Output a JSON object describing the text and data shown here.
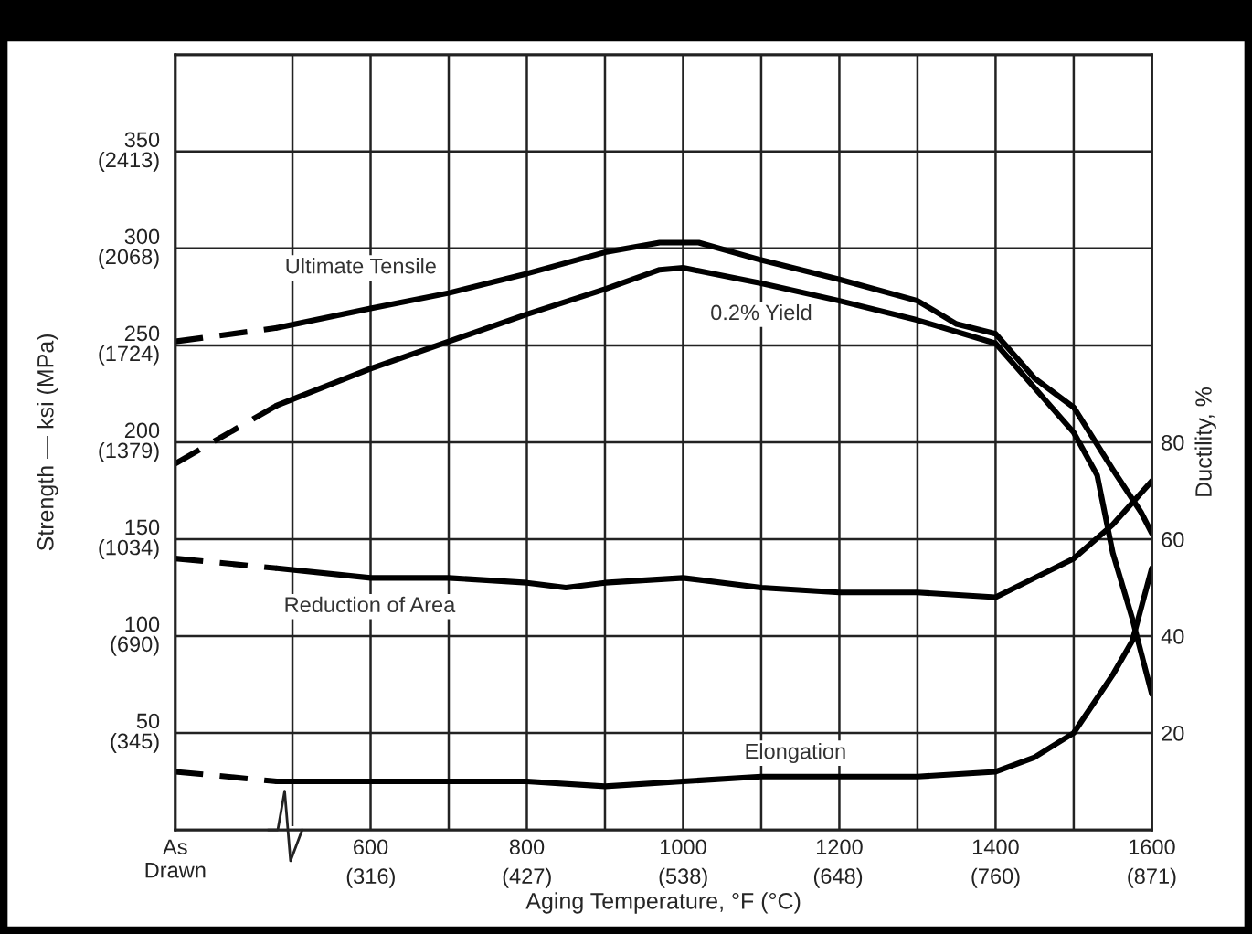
{
  "chart_data": {
    "type": "line",
    "xlabel": "Aging Temperature, °F (°C)",
    "ylabel": "Strength — ksi (MPa)",
    "y2label": "Ductility, %",
    "xlim": [
      350,
      1600
    ],
    "xticks": [
      {
        "value": 350,
        "label": "As\nDrawn"
      },
      {
        "value": 500,
        "label": null
      },
      600,
      {
        "value": 700,
        "label": null
      },
      800,
      {
        "value": 900,
        "label": null
      },
      1000,
      {
        "value": 1100,
        "label": null
      },
      1200,
      {
        "value": 1300,
        "label": null
      },
      1400,
      {
        "value": 1500,
        "label": null
      },
      1600
    ],
    "x2lim": [
      177,
      871
    ],
    "x2ticks": [
      {
        "value": 316,
        "label": "(316)"
      },
      {
        "value": 427,
        "label": "(427)"
      },
      {
        "value": 538,
        "label": "(538)"
      },
      {
        "value": 648,
        "label": "(648)"
      },
      {
        "value": 760,
        "label": "(760)"
      },
      {
        "value": 871,
        "label": "(871)"
      }
    ],
    "ylim": [
      0,
      400
    ],
    "yticks": [
      50,
      100,
      150,
      200,
      250,
      300,
      350
    ],
    "y3lim": [
      0,
      2758
    ],
    "y3ticks": [
      {
        "value": 345,
        "label": "(345)"
      },
      {
        "value": 690,
        "label": "(690)"
      },
      {
        "value": 1034,
        "label": "(1034)"
      },
      {
        "value": 1379,
        "label": "(1379)"
      },
      {
        "value": 1724,
        "label": "(1724)"
      },
      {
        "value": 2068,
        "label": "(2068)"
      },
      {
        "value": 2413,
        "label": "(2413)"
      }
    ],
    "y2lim": [
      0,
      160
    ],
    "y2ticks": [
      20,
      40,
      60,
      80
    ],
    "grid": true,
    "legend": false,
    "series": [
      {
        "color": "#000000",
        "line_style": "dashed",
        "x": [
          350,
          480
        ],
        "values": [
          252,
          259
        ]
      },
      {
        "name": "Ultimate Tensile",
        "color": "#000000",
        "line_style": "solid",
        "x": [
          480,
          600,
          700,
          800,
          900,
          970,
          1000,
          1020,
          1100,
          1200,
          1300,
          1350,
          1400,
          1450,
          1500,
          1550,
          1586,
          1600
        ],
        "values": [
          259,
          269,
          277,
          287,
          298,
          303,
          303,
          303,
          294,
          284,
          273,
          261,
          256,
          233,
          218,
          186,
          164,
          153
        ]
      },
      {
        "color": "#000000",
        "line_style": "dashed",
        "x": [
          350,
          480
        ],
        "values": [
          189,
          219
        ]
      },
      {
        "name": "0.2% Yield",
        "color": "#000000",
        "line_style": "solid",
        "x": [
          480,
          600,
          700,
          800,
          900,
          970,
          1000,
          1100,
          1200,
          1300,
          1400,
          1450,
          1500,
          1530,
          1550,
          1575,
          1600
        ],
        "values": [
          219,
          238,
          252,
          266,
          279,
          289,
          290,
          282,
          273,
          263,
          251,
          228,
          205,
          183,
          143,
          109,
          70
        ]
      },
      {
        "color": "#000000",
        "line_style": "dashed",
        "axis": "y2",
        "x": [
          350,
          480
        ],
        "values": [
          56,
          54
        ]
      },
      {
        "name": "Reduction of Area",
        "color": "#000000",
        "line_style": "solid",
        "axis": "y2",
        "x": [
          480,
          600,
          700,
          800,
          850,
          900,
          1000,
          1100,
          1200,
          1300,
          1400,
          1450,
          1500,
          1550,
          1600
        ],
        "values": [
          54,
          52,
          52,
          51,
          50,
          51,
          52,
          50,
          49,
          49,
          48,
          52,
          56,
          63,
          72
        ]
      },
      {
        "color": "#000000",
        "line_style": "dashed",
        "axis": "y2",
        "x": [
          350,
          480
        ],
        "values": [
          12,
          10
        ]
      },
      {
        "name": "Elongation",
        "color": "#000000",
        "line_style": "solid",
        "axis": "y2",
        "x": [
          480,
          600,
          700,
          800,
          900,
          1000,
          1100,
          1200,
          1300,
          1400,
          1450,
          1500,
          1550,
          1575,
          1600
        ],
        "values": [
          10,
          10,
          10,
          10,
          9,
          10,
          11,
          11,
          11,
          12,
          15,
          20,
          32,
          39,
          54
        ]
      }
    ]
  }
}
